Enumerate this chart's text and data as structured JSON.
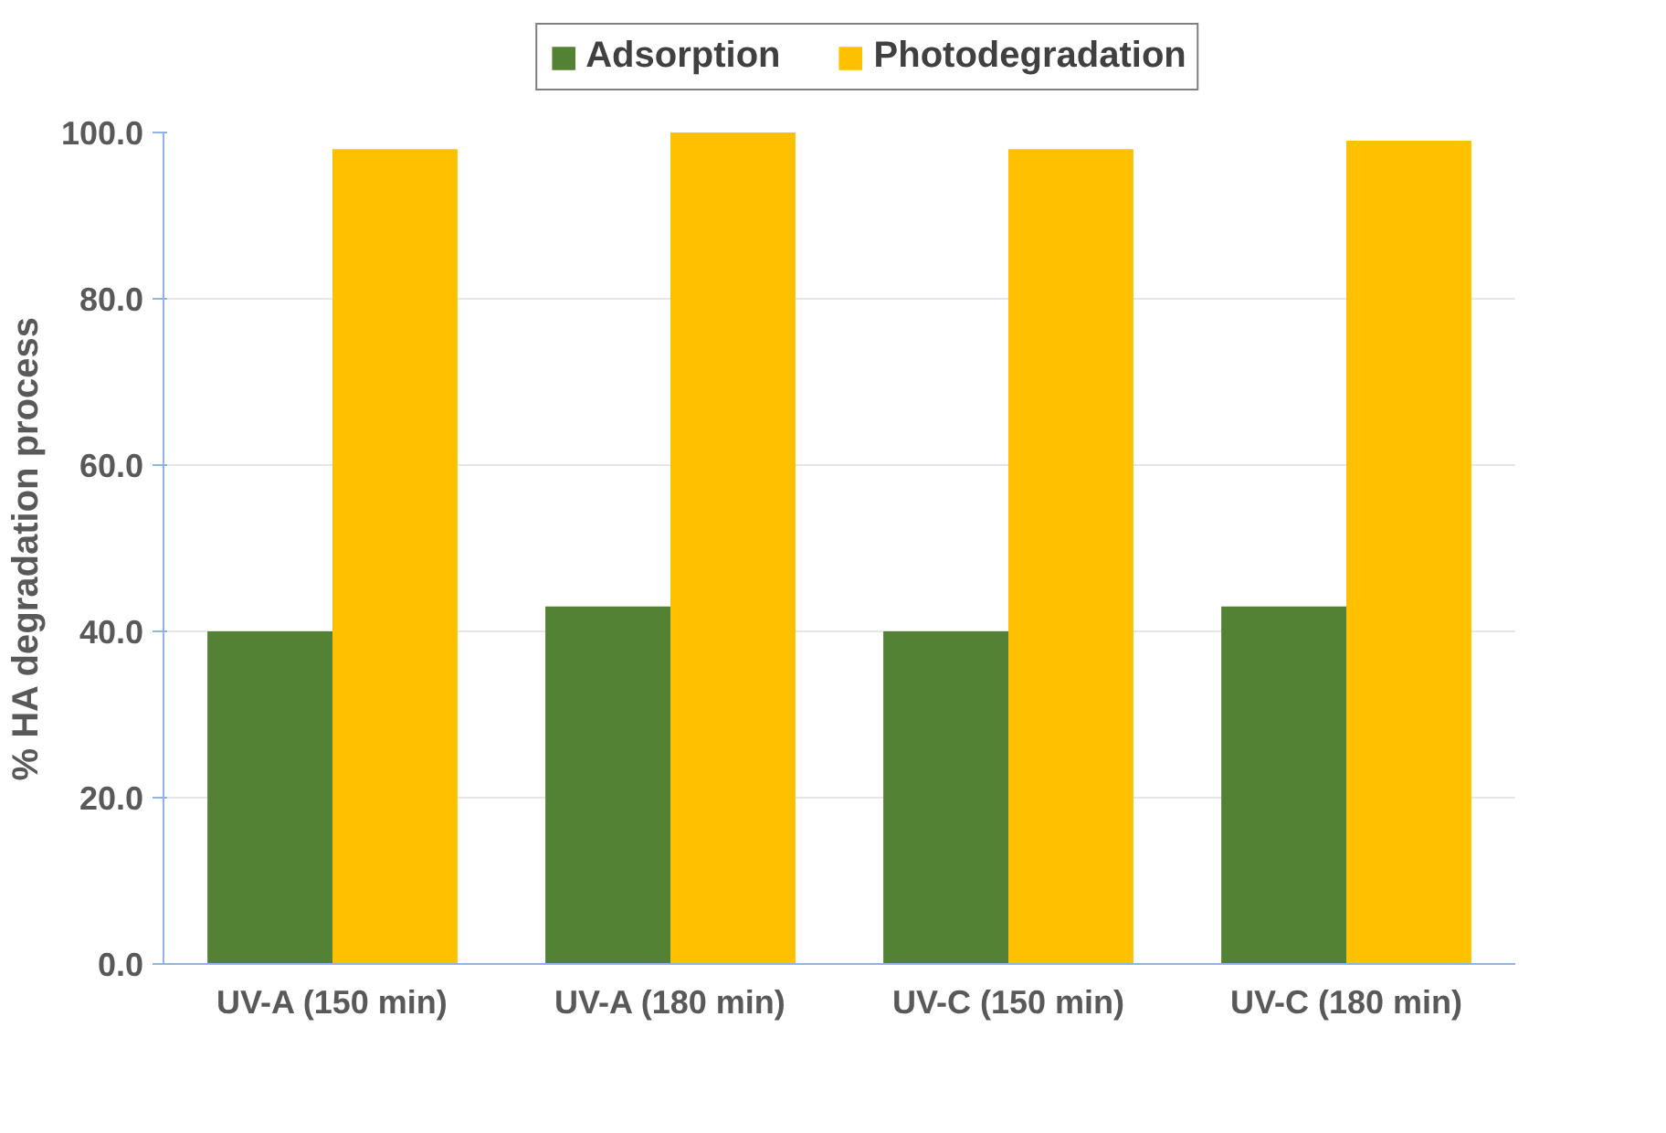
{
  "chart_data": {
    "type": "bar",
    "ylabel": "% HA degradation process",
    "categories": [
      "UV-A (150 min)",
      "UV-A (180 min)",
      "UV-C (150 min)",
      "UV-C (180 min)"
    ],
    "series": [
      {
        "name": "Adsorption",
        "color": "#548235",
        "values": [
          40,
          43,
          40,
          43
        ]
      },
      {
        "name": "Photodegradation",
        "color": "#ffc000",
        "values": [
          98,
          100,
          98,
          99
        ]
      }
    ],
    "ylim": [
      0,
      100
    ],
    "yticks": [
      {
        "value": 0,
        "label": "0.0"
      },
      {
        "value": 20,
        "label": "20.0"
      },
      {
        "value": 40,
        "label": "40.0"
      },
      {
        "value": 60,
        "label": "60.0"
      },
      {
        "value": 80,
        "label": "80.0"
      },
      {
        "value": 100,
        "label": "100.0"
      }
    ],
    "grid": "y",
    "legend": "top"
  }
}
